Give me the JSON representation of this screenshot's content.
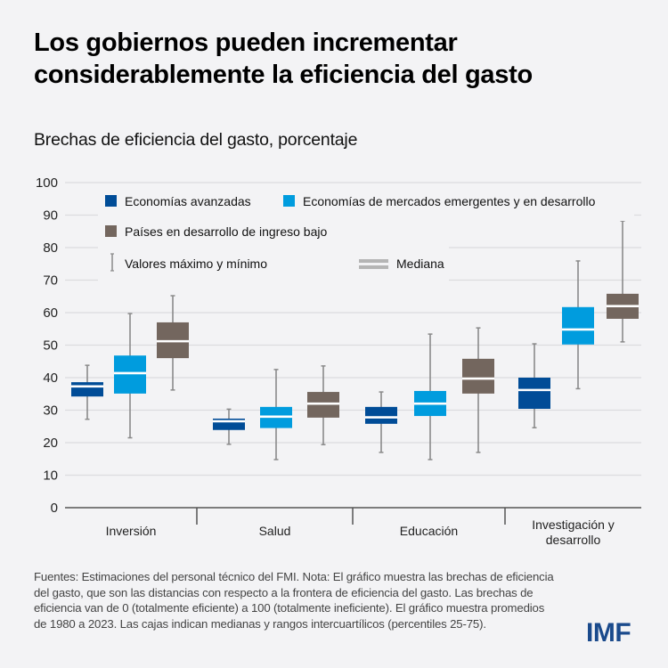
{
  "header": {
    "title": "Los gobiernos pueden incrementar considerablemente la eficiencia del gasto",
    "subtitle": "Brechas de eficiencia del gasto, porcentaje"
  },
  "footer": {
    "note": "Fuentes: Estimaciones del personal técnico del FMI. Nota: El gráfico muestra las brechas de eficiencia del gasto, que son las distancias con respecto a la frontera de eficiencia del gasto. Las brechas de eficiencia van de 0 (totalmente eficiente) a 100 (totalmente ineficiente). El gráfico muestra promedios de 1980 a 2023. Las cajas indican medianas y rangos intercuartílicos (percentiles 25-75).",
    "logo": "IMF"
  },
  "colors": {
    "advanced": "#004c97",
    "emerging": "#009cde",
    "low_income": "#73665e",
    "whisker": "#8a8a8a",
    "median_legend": "#b5b5b5",
    "grid": "#dcdcdf",
    "axis": "#555555",
    "background": "#f3f3f5"
  },
  "chart_data": {
    "type": "boxplot",
    "title": "Brechas de eficiencia del gasto, porcentaje",
    "xlabel": "",
    "ylabel": "",
    "ylim": [
      0,
      100
    ],
    "yticks": [
      0,
      10,
      20,
      30,
      40,
      50,
      60,
      70,
      80,
      90,
      100
    ],
    "grid": true,
    "legend_position": "top-left",
    "categories": [
      "Inversión",
      "Salud",
      "Educación",
      "Investigación y desarrollo"
    ],
    "category_lines": [
      [
        "Inversión"
      ],
      [
        "Salud"
      ],
      [
        "Educación"
      ],
      [
        "Investigación y",
        "desarrollo"
      ]
    ],
    "legend": {
      "series": [
        "Economías avanzadas",
        "Economías de mercados emergentes y en desarrollo",
        "Países en desarrollo de ingreso bajo"
      ],
      "whisker_label": "Valores máximo y mínimo",
      "median_label": "Mediana"
    },
    "series": [
      {
        "name": "Economías avanzadas",
        "color_key": "advanced",
        "values": [
          {
            "min": 27.2,
            "q1": 34.2,
            "median": 37.3,
            "q3": 38.6,
            "max": 43.8
          },
          {
            "min": 19.5,
            "q1": 23.9,
            "median": 26.6,
            "q3": 27.4,
            "max": 30.3
          },
          {
            "min": 17.0,
            "q1": 25.8,
            "median": 27.8,
            "q3": 31.0,
            "max": 35.6
          },
          {
            "min": 24.6,
            "q1": 30.4,
            "median": 36.2,
            "q3": 40.0,
            "max": 50.4
          }
        ]
      },
      {
        "name": "Economías de mercados emergentes y en desarrollo",
        "color_key": "emerging",
        "values": [
          {
            "min": 21.5,
            "q1": 35.1,
            "median": 41.4,
            "q3": 46.8,
            "max": 59.7
          },
          {
            "min": 14.8,
            "q1": 24.5,
            "median": 28.0,
            "q3": 31.0,
            "max": 42.5
          },
          {
            "min": 14.8,
            "q1": 28.2,
            "median": 32.0,
            "q3": 35.9,
            "max": 53.4
          },
          {
            "min": 36.6,
            "q1": 50.2,
            "median": 54.8,
            "q3": 61.7,
            "max": 75.9
          }
        ]
      },
      {
        "name": "Países en desarrollo de ingreso bajo",
        "color_key": "low_income",
        "values": [
          {
            "min": 36.2,
            "q1": 46.0,
            "median": 51.2,
            "q3": 57.0,
            "max": 65.2
          },
          {
            "min": 19.4,
            "q1": 27.7,
            "median": 32.0,
            "q3": 35.6,
            "max": 43.6
          },
          {
            "min": 17.0,
            "q1": 35.1,
            "median": 39.7,
            "q3": 45.8,
            "max": 55.3
          },
          {
            "min": 51.0,
            "q1": 58.1,
            "median": 62.0,
            "q3": 65.8,
            "max": 88.2
          }
        ]
      }
    ]
  }
}
